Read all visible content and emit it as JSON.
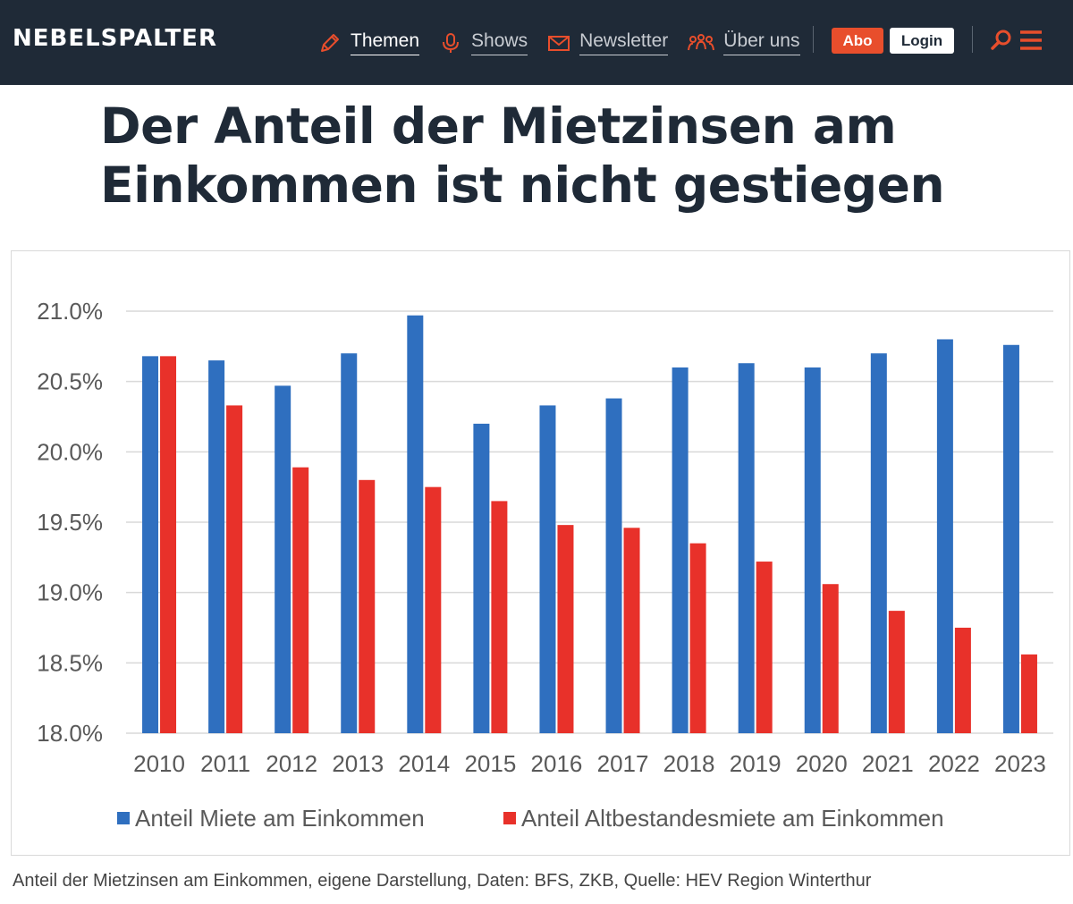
{
  "header": {
    "logo": "NEBELSPALTER",
    "nav": [
      {
        "label": "Themen",
        "icon": "pencil-icon"
      },
      {
        "label": "Shows",
        "icon": "microphone-icon"
      },
      {
        "label": "Newsletter",
        "icon": "envelope-icon"
      },
      {
        "label": "Über uns",
        "icon": "people-icon"
      }
    ],
    "abo_label": "Abo",
    "login_label": "Login",
    "accent_color": "#e84e2c",
    "bar_color": "#1f2a37"
  },
  "article": {
    "headline": "Der Anteil der Mietzinsen am Einkommen ist nicht gestiegen",
    "caption": "Anteil der Mietzinsen am Einkommen, eigene Darstellung, Daten: BFS, ZKB, Quelle: HEV Region Winterthur"
  },
  "chart_data": {
    "type": "bar",
    "categories": [
      "2010",
      "2011",
      "2012",
      "2013",
      "2014",
      "2015",
      "2016",
      "2017",
      "2018",
      "2019",
      "2020",
      "2021",
      "2022",
      "2023"
    ],
    "series": [
      {
        "name": "Anteil Miete am Einkommen",
        "color": "#2f6fbf",
        "values": [
          20.68,
          20.65,
          20.47,
          20.7,
          20.97,
          20.2,
          20.33,
          20.38,
          20.6,
          20.63,
          20.6,
          20.7,
          20.8,
          20.76
        ]
      },
      {
        "name": "Anteil Altbestandesmiete am Einkommen",
        "color": "#e8312a",
        "values": [
          20.68,
          20.33,
          19.89,
          19.8,
          19.75,
          19.65,
          19.48,
          19.46,
          19.35,
          19.22,
          19.06,
          18.87,
          18.75,
          18.56
        ]
      }
    ],
    "yticks": [
      "21.0%",
      "20.5%",
      "20.0%",
      "19.5%",
      "19.0%",
      "18.5%",
      "18.0%"
    ],
    "ylim": [
      18.0,
      21.0
    ],
    "grid": true,
    "legend_position": "bottom"
  }
}
